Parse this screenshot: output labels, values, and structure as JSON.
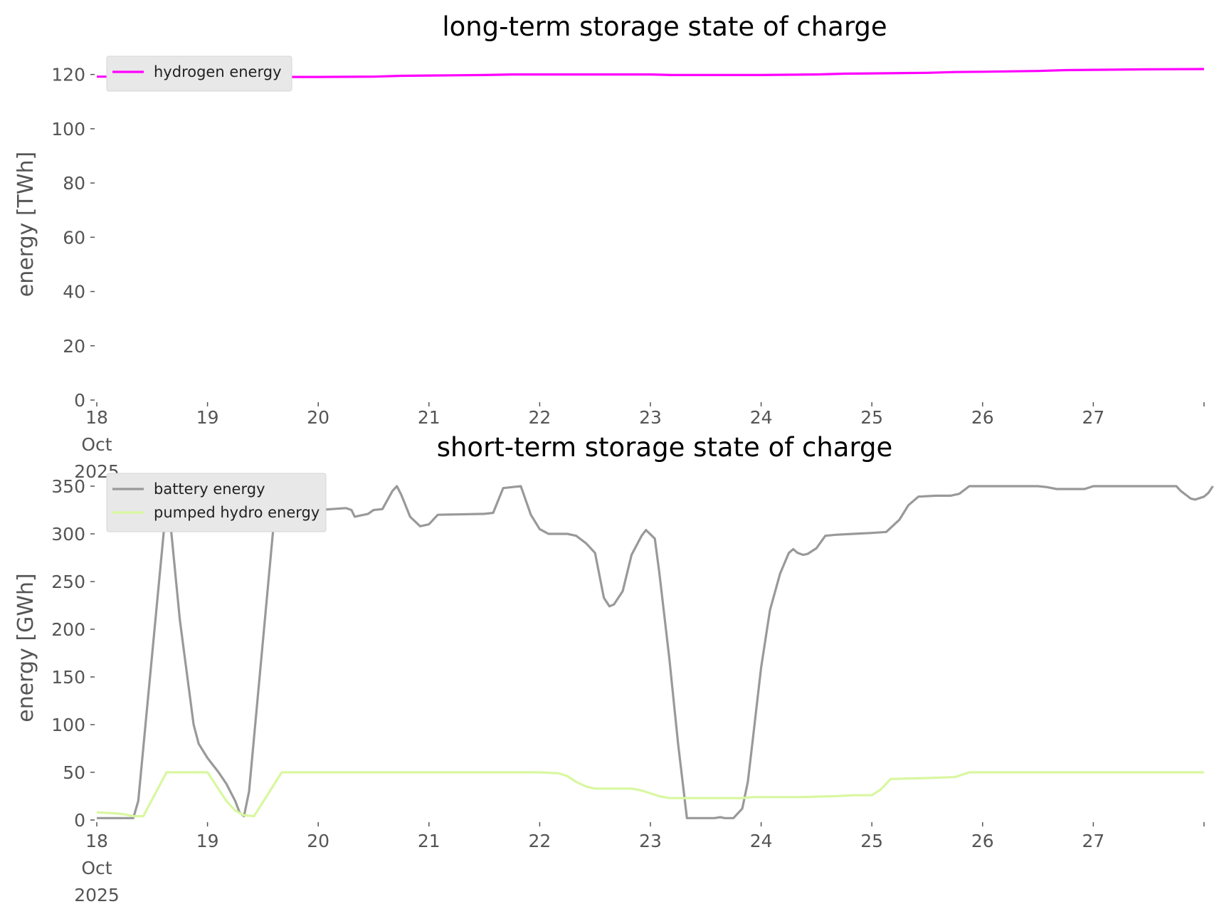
{
  "chart_data": [
    {
      "type": "line",
      "title": "long-term storage state of charge",
      "xlabel": "",
      "ylabel": "energy [TWh]",
      "ylim": [
        0,
        122
      ],
      "y_ticks": [
        "0",
        "20",
        "40",
        "60",
        "80",
        "100",
        "120"
      ],
      "x_ticks": [
        [
          "18",
          "Oct",
          "2025"
        ],
        [
          "19"
        ],
        [
          "20"
        ],
        [
          "21"
        ],
        [
          "22"
        ],
        [
          "23"
        ],
        [
          "24"
        ],
        [
          "25"
        ],
        [
          "26"
        ],
        [
          "27"
        ]
      ],
      "x_days": [
        0,
        1,
        2,
        3,
        4,
        5,
        6,
        7,
        8,
        9
      ],
      "x_range_days": [
        0,
        10
      ],
      "grid": false,
      "legend_position": "upper-left",
      "series": [
        {
          "name": "hydrogen energy",
          "color": "#ff00ff",
          "points": [
            [
              0,
              119.2
            ],
            [
              0.5,
              119.2
            ],
            [
              1,
              119.1
            ],
            [
              2,
              119.1
            ],
            [
              2.5,
              119.2
            ],
            [
              2.75,
              119.5
            ],
            [
              3,
              119.6
            ],
            [
              3.5,
              119.8
            ],
            [
              3.75,
              120.0
            ],
            [
              4,
              120.0
            ],
            [
              4.5,
              120.0
            ],
            [
              5,
              120.0
            ],
            [
              5.2,
              119.8
            ],
            [
              5.5,
              119.8
            ],
            [
              6,
              119.8
            ],
            [
              6.5,
              120.0
            ],
            [
              6.75,
              120.3
            ],
            [
              7,
              120.4
            ],
            [
              7.5,
              120.6
            ],
            [
              7.75,
              120.9
            ],
            [
              8,
              121.0
            ],
            [
              8.5,
              121.3
            ],
            [
              8.75,
              121.6
            ],
            [
              9,
              121.7
            ],
            [
              9.5,
              121.9
            ],
            [
              10,
              122.0
            ]
          ]
        }
      ]
    },
    {
      "type": "line",
      "title": "short-term storage state of charge",
      "xlabel": "",
      "ylabel": "energy [GWh]",
      "ylim": [
        0,
        350
      ],
      "y_ticks": [
        "0",
        "50",
        "100",
        "150",
        "200",
        "250",
        "300",
        "350"
      ],
      "x_ticks": [
        [
          "18",
          "Oct",
          "2025"
        ],
        [
          "19"
        ],
        [
          "20"
        ],
        [
          "21"
        ],
        [
          "22"
        ],
        [
          "23"
        ],
        [
          "24"
        ],
        [
          "25"
        ],
        [
          "26"
        ],
        [
          "27"
        ]
      ],
      "x_days": [
        0,
        1,
        2,
        3,
        4,
        5,
        6,
        7,
        8,
        9
      ],
      "x_range_days": [
        0,
        10
      ],
      "grid": false,
      "legend_position": "upper-left",
      "series": [
        {
          "name": "battery energy",
          "color": "#999999",
          "points": [
            [
              0,
              2
            ],
            [
              0.33,
              2
            ],
            [
              0.375,
              20
            ],
            [
              0.625,
              327
            ],
            [
              0.67,
              305
            ],
            [
              0.75,
              210
            ],
            [
              0.875,
              100
            ],
            [
              0.92,
              80
            ],
            [
              1,
              65
            ],
            [
              1.1,
              50
            ],
            [
              1.17,
              38
            ],
            [
              1.25,
              20
            ],
            [
              1.29,
              8
            ],
            [
              1.33,
              4
            ],
            [
              1.375,
              30
            ],
            [
              1.625,
              345
            ],
            [
              1.67,
              345
            ],
            [
              1.75,
              325
            ],
            [
              1.83,
              322
            ],
            [
              2,
              325
            ],
            [
              2.25,
              327
            ],
            [
              2.3,
              325
            ],
            [
              2.33,
              318
            ],
            [
              2.45,
              321
            ],
            [
              2.5,
              325
            ],
            [
              2.58,
              326
            ],
            [
              2.67,
              345
            ],
            [
              2.71,
              350
            ],
            [
              2.75,
              341
            ],
            [
              2.83,
              318
            ],
            [
              2.92,
              308
            ],
            [
              3,
              310
            ],
            [
              3.08,
              320
            ],
            [
              3.5,
              321
            ],
            [
              3.58,
              322
            ],
            [
              3.67,
              348
            ],
            [
              3.75,
              349
            ],
            [
              3.83,
              350
            ],
            [
              3.92,
              320
            ],
            [
              4,
              305
            ],
            [
              4.08,
              300
            ],
            [
              4.25,
              300
            ],
            [
              4.33,
              298
            ],
            [
              4.42,
              290
            ],
            [
              4.5,
              280
            ],
            [
              4.58,
              233
            ],
            [
              4.63,
              224
            ],
            [
              4.67,
              226
            ],
            [
              4.75,
              240
            ],
            [
              4.83,
              278
            ],
            [
              4.92,
              298
            ],
            [
              4.96,
              304
            ],
            [
              5.04,
              295
            ],
            [
              5.08,
              260
            ],
            [
              5.17,
              170
            ],
            [
              5.25,
              80
            ],
            [
              5.33,
              2
            ],
            [
              5.5,
              2
            ],
            [
              5.58,
              2
            ],
            [
              5.63,
              3
            ],
            [
              5.67,
              2
            ],
            [
              5.75,
              2
            ],
            [
              5.83,
              12
            ],
            [
              5.88,
              40
            ],
            [
              5.92,
              80
            ],
            [
              6,
              160
            ],
            [
              6.08,
              220
            ],
            [
              6.17,
              258
            ],
            [
              6.25,
              280
            ],
            [
              6.29,
              284
            ],
            [
              6.33,
              280
            ],
            [
              6.38,
              278
            ],
            [
              6.42,
              279
            ],
            [
              6.5,
              285
            ],
            [
              6.58,
              298
            ],
            [
              6.67,
              299
            ],
            [
              6.83,
              300
            ],
            [
              7,
              301
            ],
            [
              7.13,
              302
            ],
            [
              7.25,
              315
            ],
            [
              7.33,
              330
            ],
            [
              7.42,
              339
            ],
            [
              7.58,
              340
            ],
            [
              7.71,
              340
            ],
            [
              7.79,
              342
            ],
            [
              7.88,
              350
            ],
            [
              8.38,
              350
            ],
            [
              8.5,
              350
            ],
            [
              8.58,
              349
            ],
            [
              8.67,
              347
            ],
            [
              8.75,
              347
            ],
            [
              8.92,
              347
            ],
            [
              9.0,
              350
            ],
            [
              9.08,
              350
            ],
            [
              9.5,
              350
            ],
            [
              9.75,
              350
            ],
            [
              9.79,
              345
            ],
            [
              9.88,
              337
            ],
            [
              9.92,
              336
            ],
            [
              10,
              339
            ],
            [
              10.04,
              343
            ],
            [
              10.08,
              350
            ]
          ]
        },
        {
          "name": "pumped hydro energy",
          "color": "#d9f7a0",
          "points": [
            [
              0,
              8
            ],
            [
              0.17,
              7
            ],
            [
              0.25,
              6
            ],
            [
              0.33,
              4
            ],
            [
              0.42,
              4
            ],
            [
              0.63,
              50
            ],
            [
              1.0,
              50
            ],
            [
              1.17,
              20
            ],
            [
              1.25,
              10
            ],
            [
              1.33,
              5
            ],
            [
              1.42,
              4
            ],
            [
              1.67,
              50
            ],
            [
              2,
              50
            ],
            [
              2.5,
              50
            ],
            [
              3,
              50
            ],
            [
              3.5,
              50
            ],
            [
              4,
              50
            ],
            [
              4.17,
              49
            ],
            [
              4.25,
              46
            ],
            [
              4.33,
              40
            ],
            [
              4.42,
              35
            ],
            [
              4.5,
              33
            ],
            [
              4.83,
              33
            ],
            [
              4.92,
              31
            ],
            [
              5.0,
              28
            ],
            [
              5.08,
              25
            ],
            [
              5.17,
              23
            ],
            [
              5.5,
              23
            ],
            [
              5.83,
              23
            ],
            [
              5.92,
              24
            ],
            [
              6,
              24
            ],
            [
              6.33,
              24
            ],
            [
              6.67,
              25
            ],
            [
              6.83,
              26
            ],
            [
              7.0,
              26
            ],
            [
              7.08,
              32
            ],
            [
              7.17,
              43
            ],
            [
              7.5,
              44
            ],
            [
              7.75,
              45
            ],
            [
              7.88,
              50
            ],
            [
              8,
              50
            ],
            [
              8.5,
              50
            ],
            [
              9,
              50
            ],
            [
              9.5,
              50
            ],
            [
              10,
              50
            ]
          ]
        }
      ]
    }
  ]
}
